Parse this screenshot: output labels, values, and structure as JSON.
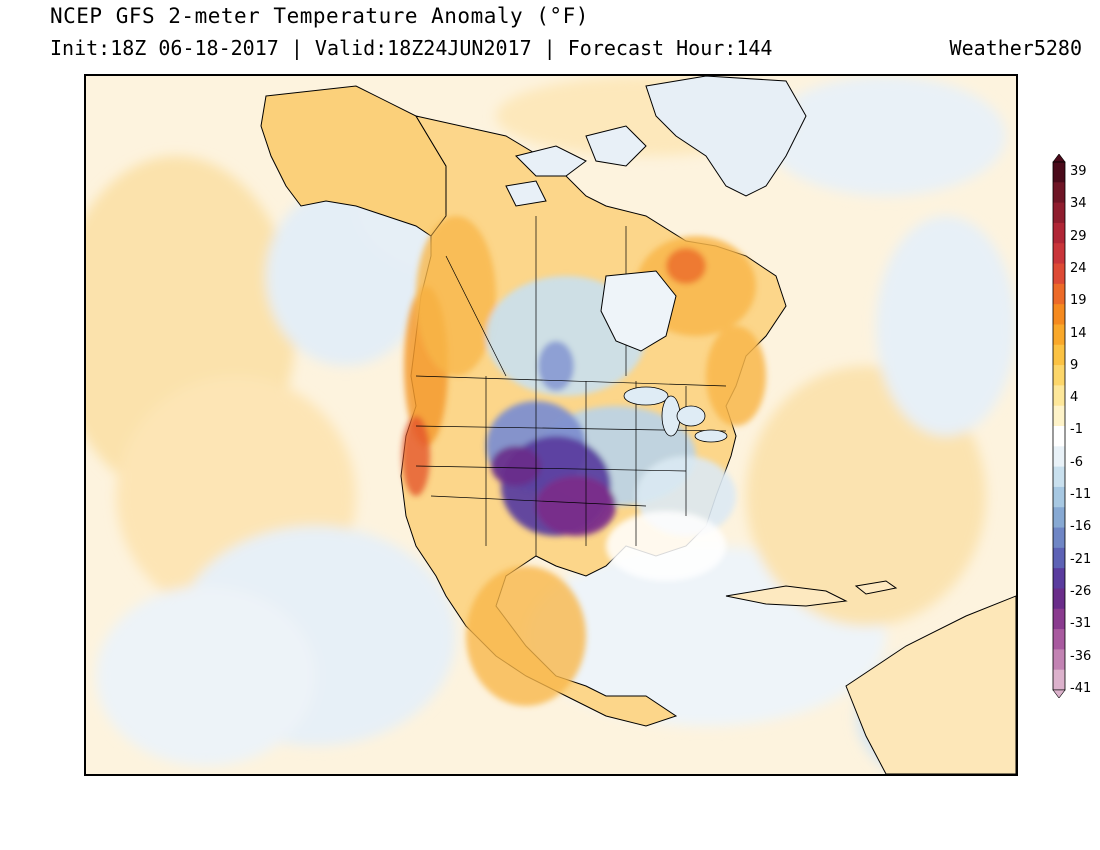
{
  "header": {
    "title": "NCEP GFS 2-meter Temperature Anomaly (°F)",
    "subtitle": "Init:18Z 06-18-2017 | Valid:18Z24JUN2017 | Forecast Hour:144",
    "brand": "Weather5280"
  },
  "colorbar": {
    "labels": [
      "39",
      "34",
      "29",
      "24",
      "19",
      "14",
      "9",
      "4",
      "-1",
      "-6",
      "-11",
      "-16",
      "-21",
      "-26",
      "-31",
      "-36",
      "-41"
    ],
    "colors": [
      "#4a0a1a",
      "#6e1525",
      "#8f1d2e",
      "#b02636",
      "#c9353a",
      "#dd4a35",
      "#ec6a28",
      "#f58a1f",
      "#f9a82a",
      "#fbc243",
      "#fcd66a",
      "#fde79a",
      "#fef3c9",
      "#ffffff",
      "#e9f2f8",
      "#c9e0ee",
      "#a7c8e2",
      "#87a9d3",
      "#6f86c5",
      "#5d62b5",
      "#5a3c9e",
      "#6a2d8a",
      "#8a3b8f",
      "#a85a9f",
      "#c283b3",
      "#dcb2cc"
    ]
  },
  "map": {
    "region": "North America",
    "anomaly_colors": {
      "warm_light": "#fde8b8",
      "warm": "#fbc75e",
      "warm_strong": "#f39a2d",
      "hot": "#e4552a",
      "cool_light": "#e3eef6",
      "cool": "#b9d3e8",
      "cold": "#7e8fcf",
      "very_cold": "#5b3f9f",
      "extreme_cold": "#7a2c8a",
      "coastline": "#000000"
    }
  }
}
